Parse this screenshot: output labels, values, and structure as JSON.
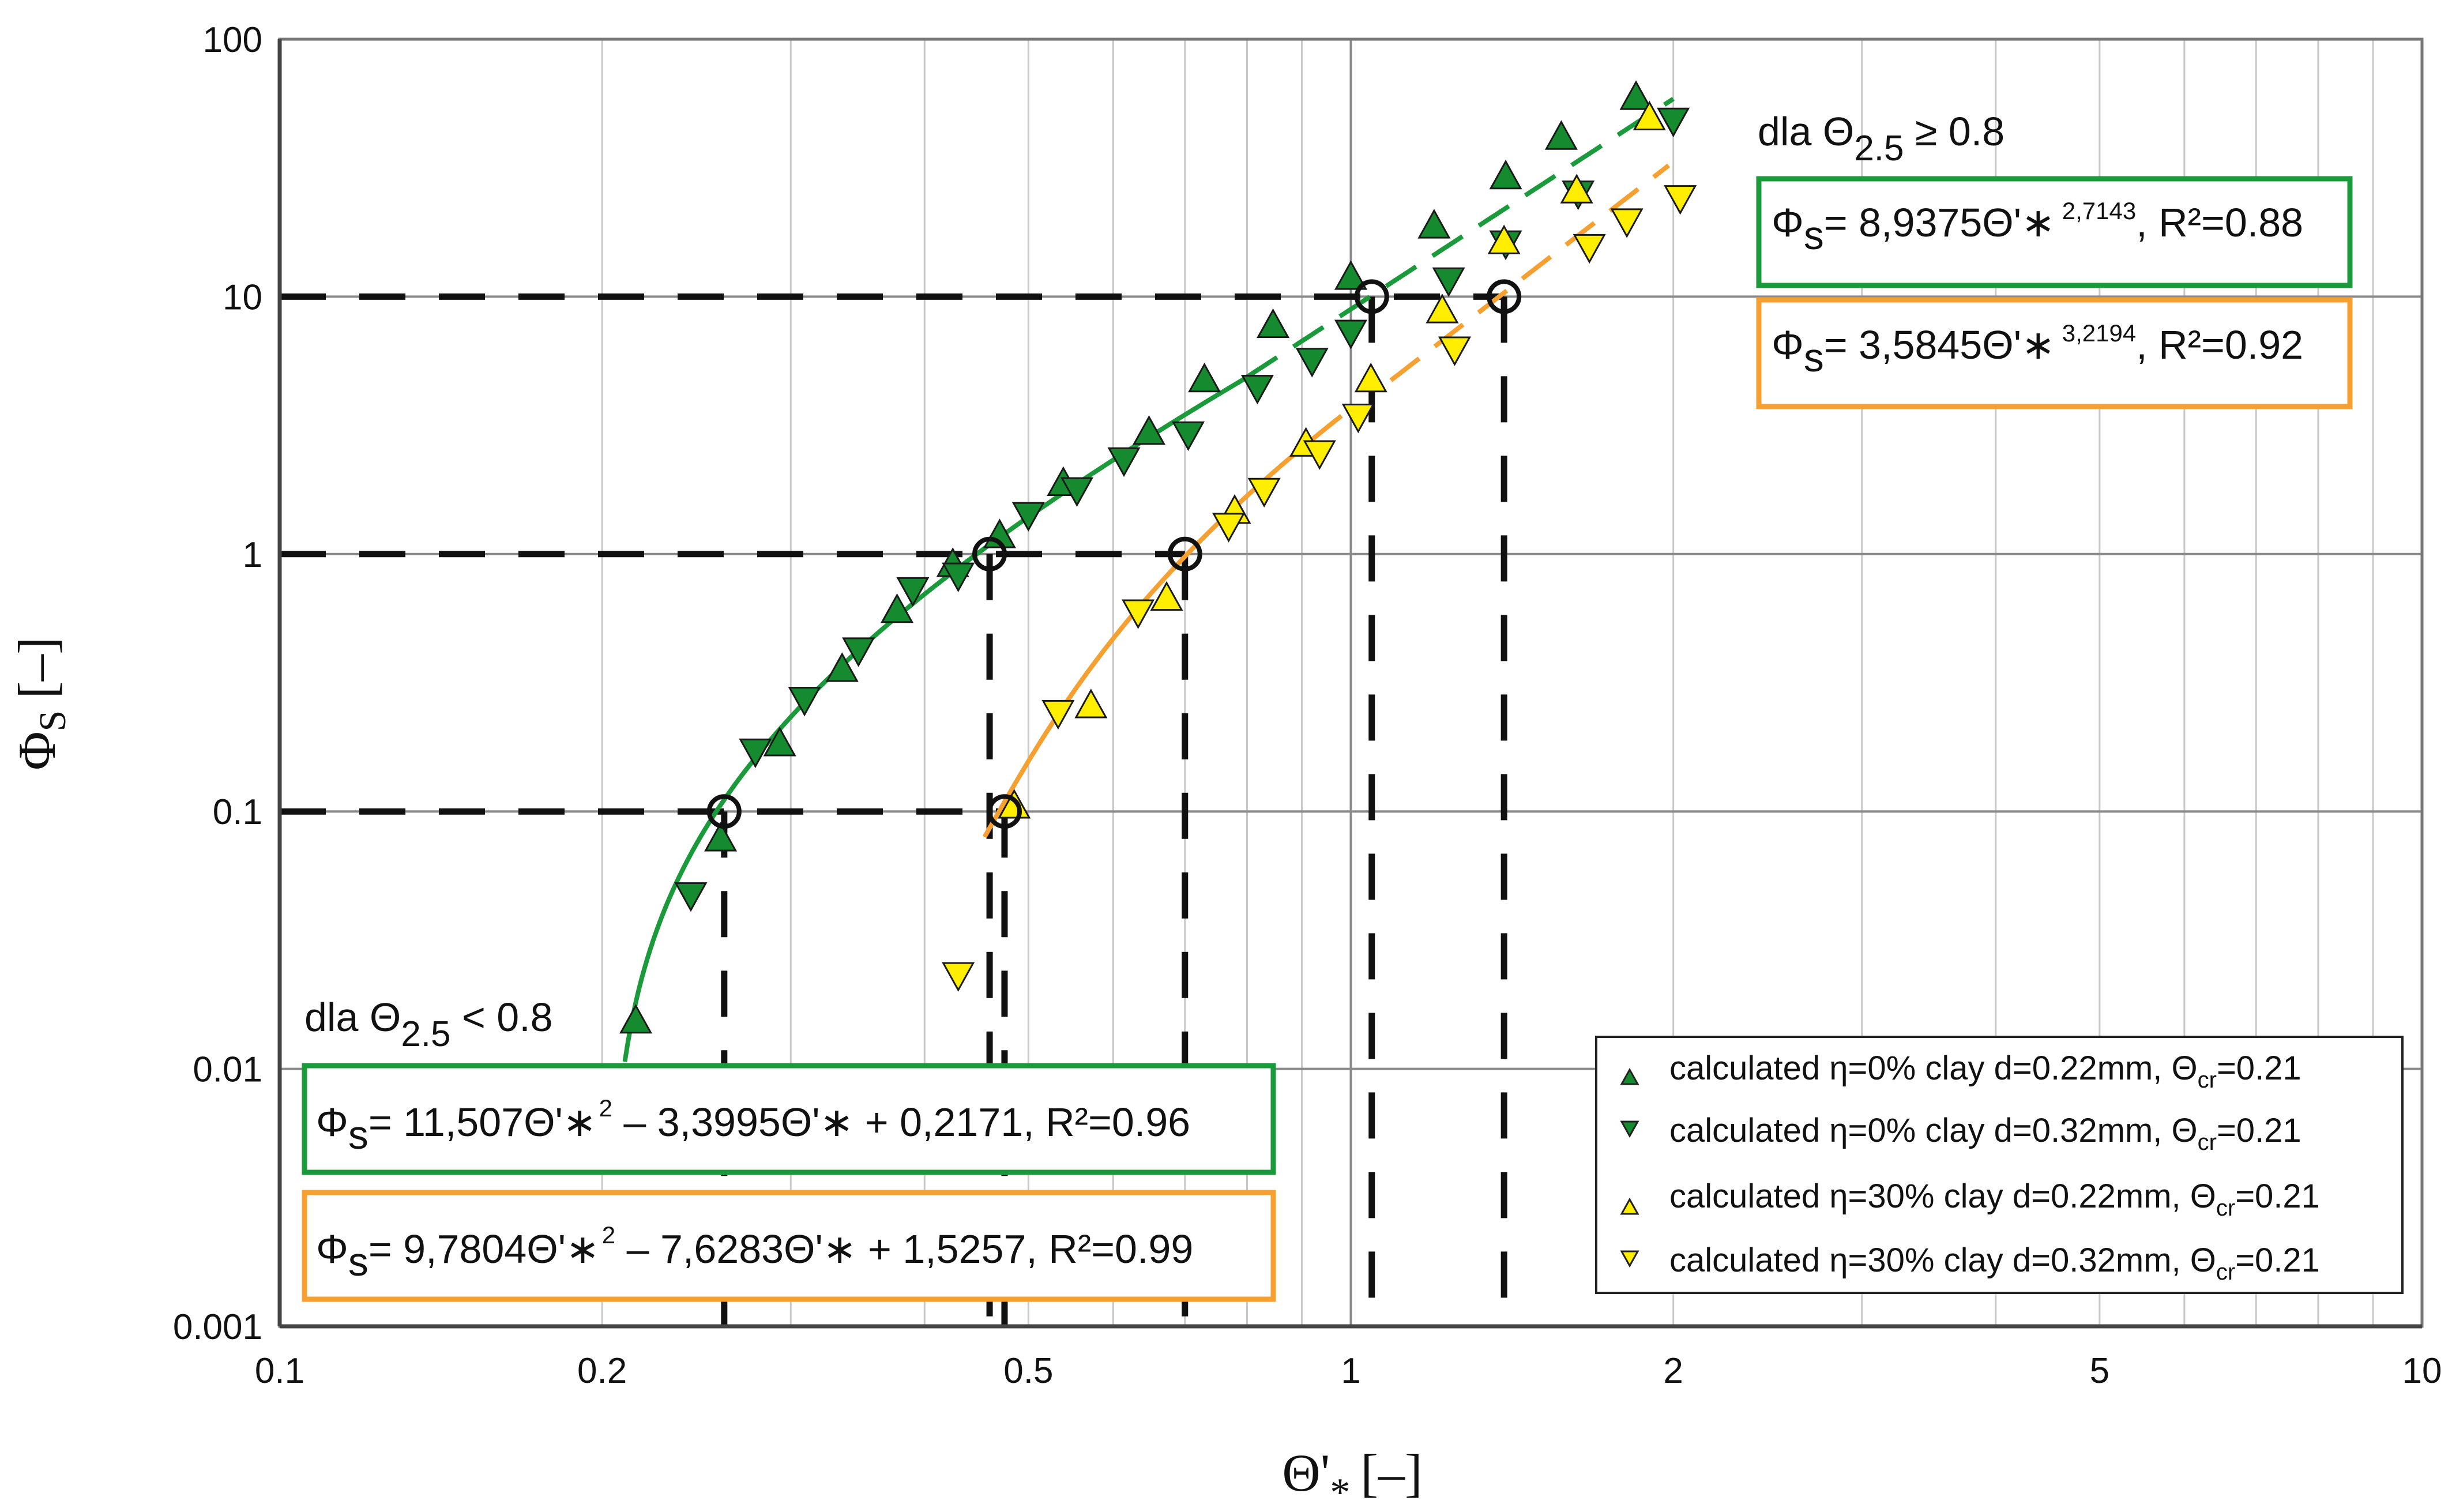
{
  "chart_data": {
    "type": "scatter",
    "xscale": "log",
    "yscale": "log",
    "xlim": [
      0.1,
      10
    ],
    "ylim": [
      0.001,
      100
    ],
    "xticks": [
      "0.1",
      "0.2",
      "0.5",
      "1",
      "2",
      "5",
      "10"
    ],
    "xtick_values": [
      0.1,
      0.2,
      0.5,
      1,
      2,
      5,
      10
    ],
    "yticks": [
      "0.001",
      "0.01",
      "0.1",
      "1",
      "10",
      "100"
    ],
    "ytick_values": [
      0.001,
      0.01,
      0.1,
      1,
      10,
      100
    ],
    "ylabel_main": "Φ",
    "ylabel_sub": "S",
    "ylabel_unit": "[–]",
    "xlabel_main": "Θ'",
    "xlabel_sub": "*",
    "xlabel_unit": "[–]",
    "colors": {
      "green": "#1a9a3a",
      "green_marker": "#168a2e",
      "orange": "#f5a030",
      "yellow_marker": "#ffee00",
      "grid": "#c8c8c8",
      "axis": "#777777",
      "dash": "#111111"
    },
    "series": [
      {
        "name": "calculated η=0% clay d=0.22mm, Θcr=0.21",
        "marker": "triangle-up",
        "color": "#168a2e",
        "points": [
          [
            0.215,
            0.0155
          ],
          [
            0.258,
            0.079
          ],
          [
            0.293,
            0.185
          ],
          [
            0.335,
            0.36
          ],
          [
            0.377,
            0.61
          ],
          [
            0.425,
            0.92
          ],
          [
            0.47,
            1.19
          ],
          [
            0.539,
            1.9
          ],
          [
            0.648,
            3.0
          ],
          [
            0.73,
            4.8
          ],
          [
            0.846,
            7.8
          ],
          [
            1.0,
            12.0
          ],
          [
            1.196,
            19.0
          ],
          [
            1.395,
            29.5
          ],
          [
            1.572,
            42.0
          ],
          [
            1.846,
            60.0
          ]
        ]
      },
      {
        "name": "calculated η=0% clay d=0.32mm, Θcr=0.21",
        "marker": "triangle-down",
        "color": "#168a2e",
        "points": [
          [
            0.242,
            0.047
          ],
          [
            0.278,
            0.17
          ],
          [
            0.309,
            0.27
          ],
          [
            0.347,
            0.42
          ],
          [
            0.39,
            0.72
          ],
          [
            0.43,
            0.82
          ],
          [
            0.5,
            1.41
          ],
          [
            0.555,
            1.76
          ],
          [
            0.614,
            2.3
          ],
          [
            0.705,
            2.9
          ],
          [
            0.818,
            4.4
          ],
          [
            0.92,
            5.6
          ],
          [
            1.0,
            7.2
          ],
          [
            1.234,
            11.5
          ],
          [
            1.395,
            16.0
          ],
          [
            1.63,
            25.0
          ],
          [
            2.0,
            48.0
          ]
        ]
      },
      {
        "name": "calculated η=30% clay d=0.22mm, Θcr=0.21",
        "marker": "triangle-up",
        "color": "#ffee00",
        "points": [
          [
            0.485,
            0.106
          ],
          [
            0.572,
            0.26
          ],
          [
            0.673,
            0.68
          ],
          [
            0.779,
            1.48
          ],
          [
            0.908,
            2.7
          ],
          [
            1.044,
            4.8
          ],
          [
            1.217,
            8.9
          ],
          [
            1.39,
            16.5
          ],
          [
            1.625,
            26.0
          ],
          [
            1.9,
            50.0
          ]
        ]
      },
      {
        "name": "calculated η=30% clay d=0.32mm, Θcr=0.21",
        "marker": "triangle-down",
        "color": "#ffee00",
        "points": [
          [
            0.43,
            0.023
          ],
          [
            0.533,
            0.24
          ],
          [
            0.633,
            0.59
          ],
          [
            0.769,
            1.28
          ],
          [
            0.83,
            1.75
          ],
          [
            0.935,
            2.45
          ],
          [
            1.016,
            3.4
          ],
          [
            1.25,
            6.2
          ],
          [
            1.67,
            15.5
          ],
          [
            1.81,
            19.5
          ],
          [
            2.03,
            24.0
          ]
        ]
      }
    ],
    "fits": [
      {
        "label": "green_low",
        "color": "#1a9a3a",
        "style": "solid",
        "form": "poly2",
        "a": 11.507,
        "b": -3.3995,
        "c": 0.2171,
        "x": [
          0.21,
          0.8
        ]
      },
      {
        "label": "orange_low",
        "color": "#f5a030",
        "style": "solid",
        "form": "poly2",
        "a": 9.7804,
        "b": -7.6283,
        "c": 1.5257,
        "x": [
          0.455,
          0.98
        ]
      },
      {
        "label": "green_high",
        "color": "#1a9a3a",
        "style": "dashed",
        "form": "power",
        "a": 8.9375,
        "b": 2.7143,
        "x": [
          0.8,
          2.0
        ]
      },
      {
        "label": "orange_high",
        "color": "#f5a030",
        "style": "dashed",
        "form": "power",
        "a": 3.5845,
        "b": 3.2194,
        "x": [
          1.09,
          1.98
        ]
      }
    ],
    "reference_points": [
      {
        "x": 0.26,
        "y": 0.1
      },
      {
        "x": 0.475,
        "y": 0.1
      },
      {
        "x": 0.46,
        "y": 1
      },
      {
        "x": 0.7,
        "y": 1
      },
      {
        "x": 1.046,
        "y": 10
      },
      {
        "x": 1.39,
        "y": 10
      }
    ],
    "dashed_guides": [
      {
        "y": 0.1,
        "x_to": 0.475,
        "vertical_at": [
          0.26,
          0.475
        ]
      },
      {
        "y": 1,
        "x_to": 0.7,
        "vertical_at": [
          0.46,
          0.7
        ]
      },
      {
        "y": 10,
        "x_to": 1.39,
        "vertical_at": [
          1.046,
          1.39
        ]
      }
    ],
    "annotations": {
      "high_condition": {
        "prefix": "dla Θ",
        "sub": "2.5",
        "rest": " ≥ 0.8"
      },
      "high_green_eq": {
        "lead": "Φ",
        "sub": "s",
        "main": "= 8,9375Θ'∗",
        "sup": "2,7143",
        "tail": ", R²=0.88"
      },
      "high_orange_eq": {
        "lead": "Φ",
        "sub": "s",
        "main": "= 3,5845Θ'∗",
        "sup": "3,2194",
        "tail": ", R²=0.92"
      },
      "low_condition": {
        "prefix": "dla Θ",
        "sub": "2.5",
        "rest": " < 0.8"
      },
      "low_green_eq": {
        "lead": "Φ",
        "sub": "s",
        "main": "= 11,507Θ'∗",
        "sup": "2",
        "tail": " – 3,3995Θ'∗ + 0,2171, R²=0.96"
      },
      "low_orange_eq": {
        "lead": "Φ",
        "sub": "s",
        "main": "= 9,7804Θ'∗",
        "sup": "2",
        "tail": " – 7,6283Θ'∗ + 1,5257, R²=0.99"
      }
    },
    "legend": {
      "position": "bottom-right",
      "entries": [
        {
          "text": "calculated η=0% clay d=0.22mm, Θ",
          "sub": "cr",
          "tail": "=0.21",
          "marker": "triangle-up",
          "color": "#168a2e"
        },
        {
          "text": "calculated η=0% clay d=0.32mm, Θ",
          "sub": "cr",
          "tail": "=0.21",
          "marker": "triangle-down",
          "color": "#168a2e"
        },
        {
          "text": "calculated η=30% clay d=0.22mm, Θ",
          "sub": "cr",
          "tail": "=0.21",
          "marker": "triangle-up",
          "color": "#ffee00"
        },
        {
          "text": "calculated η=30% clay d=0.32mm, Θ",
          "sub": "cr",
          "tail": "=0.21",
          "marker": "triangle-down",
          "color": "#ffee00"
        }
      ]
    }
  }
}
